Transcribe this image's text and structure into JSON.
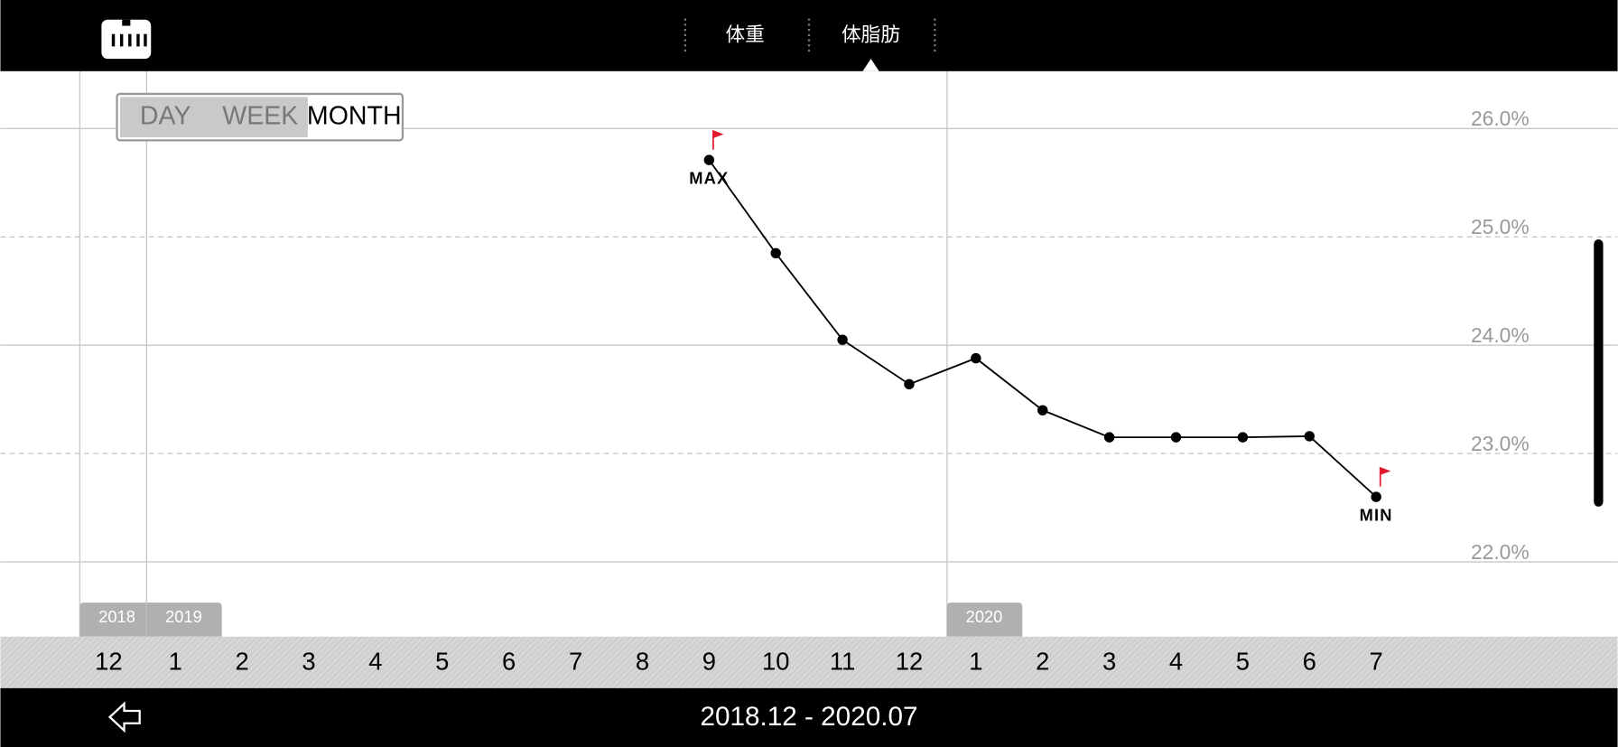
{
  "header": {
    "tabs": [
      "体重",
      "体脂肪"
    ]
  },
  "range_buttons": [
    "DAY",
    "WEEK",
    "MONTH"
  ],
  "footer": {
    "date_range": "2018.12 - 2020.07"
  },
  "chart_data": {
    "type": "line",
    "categories": [
      "12",
      "1",
      "2",
      "3",
      "4",
      "5",
      "6",
      "7",
      "8",
      "9",
      "10",
      "11",
      "12",
      "1",
      "2",
      "3",
      "4",
      "5",
      "6",
      "7"
    ],
    "years": [
      "2018",
      "2019",
      null,
      null,
      null,
      null,
      null,
      null,
      null,
      null,
      null,
      null,
      null,
      "2020",
      null,
      null,
      null,
      null,
      null,
      null
    ],
    "series": [
      {
        "name": "体脂肪",
        "color": "#000000",
        "values": [
          null,
          null,
          null,
          null,
          null,
          null,
          null,
          null,
          null,
          25.71,
          24.85,
          24.05,
          23.64,
          23.88,
          23.4,
          23.15,
          23.15,
          23.15,
          23.16,
          22.6
        ]
      }
    ],
    "point_labels": [
      null,
      null,
      null,
      null,
      null,
      null,
      null,
      null,
      null,
      "MAX",
      null,
      null,
      null,
      null,
      null,
      null,
      null,
      null,
      null,
      "MIN"
    ],
    "ylim": [
      21.31,
      26.53
    ],
    "yticks": [
      {
        "value": 22,
        "label": "22.0%"
      },
      {
        "value": 23,
        "label": "23.0%"
      },
      {
        "value": 24,
        "label": "24.0%"
      },
      {
        "value": 25,
        "label": "25.0%"
      },
      {
        "value": 26,
        "label": "26.0%"
      }
    ],
    "grid": true
  }
}
